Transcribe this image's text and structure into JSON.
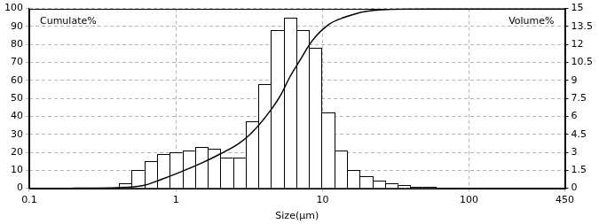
{
  "chart_data": {
    "type": "histogram",
    "xlabel": "Size(μm)",
    "ylabel": "Cumulate%",
    "y2label": "Volume%",
    "log": "x",
    "grid": true,
    "xlim": [
      0.1,
      450
    ],
    "xticks": [
      0.1,
      1,
      10,
      100,
      450
    ],
    "ylim": [
      0,
      100
    ],
    "yticks": [
      0,
      10,
      20,
      30,
      40,
      50,
      60,
      70,
      80,
      90,
      100
    ],
    "y2lim": [
      0,
      15
    ],
    "y2ticks": [
      0,
      1.5,
      3,
      4.5,
      6,
      7.5,
      9,
      10.5,
      12,
      13.5,
      15
    ],
    "series": [
      {
        "type": "bar",
        "axis": "y2",
        "color": "#000000",
        "bins": [
          0.41,
          0.5,
          0.61,
          0.744,
          0.908,
          1.108,
          1.352,
          1.649,
          2.012,
          2.455,
          2.995,
          3.654,
          4.458,
          5.438,
          6.634,
          8.094,
          9.874,
          12.05,
          14.7,
          17.93,
          21.87,
          26.68,
          32.55,
          39.71,
          48.45,
          59.11
        ],
        "values": [
          0.45,
          1.5,
          2.25,
          2.85,
          3.0,
          3.15,
          3.45,
          3.3,
          2.55,
          2.55,
          5.55,
          8.7,
          13.2,
          14.25,
          13.2,
          11.7,
          6.3,
          3.15,
          1.5,
          0.98,
          0.6,
          0.45,
          0.3,
          0.15,
          0.1
        ]
      },
      {
        "type": "line",
        "color": "#000000",
        "x": [
          0.2,
          0.4,
          0.6,
          0.8,
          1,
          1.5,
          2,
          2.7,
          3.3,
          4.3,
          5.2,
          6,
          7,
          8.5,
          11,
          14,
          20,
          40,
          100,
          450
        ],
        "values": [
          0,
          0.3,
          1.5,
          5,
          8,
          14,
          19,
          25,
          31,
          42,
          52,
          62,
          71,
          82,
          91,
          95,
          98.5,
          99.8,
          100,
          100
        ]
      }
    ]
  }
}
